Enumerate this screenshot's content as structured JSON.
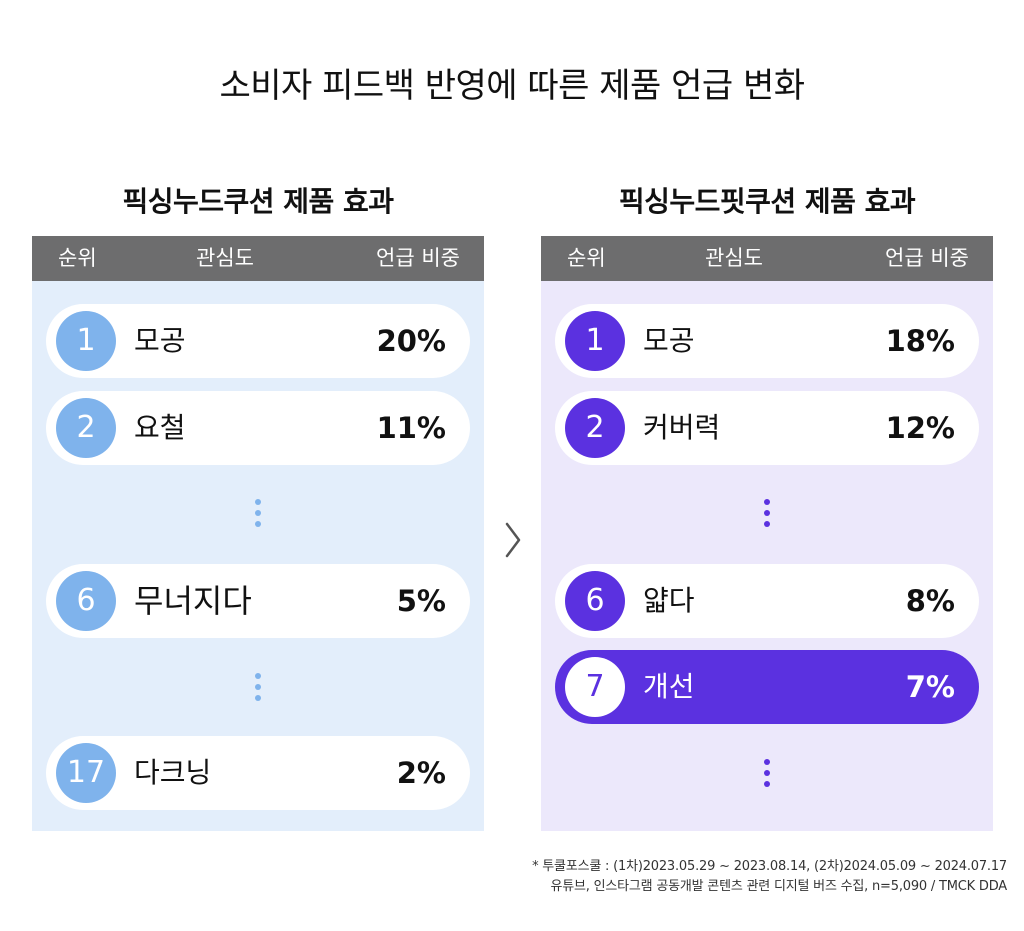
{
  "title": "소비자 피드백 반영에 따른 제품 언급 변화",
  "headers": {
    "rank": "순위",
    "interest": "관심도",
    "share": "언급 비중"
  },
  "colors": {
    "left_badge": "#7fb3ec",
    "left_bg": "#e3eefb",
    "right_badge": "#5b31e0",
    "right_bg": "#ece8fb",
    "header": "#6d6d6e"
  },
  "chart_data": [
    {
      "type": "table",
      "title": "픽싱누드쿠션 제품 효과",
      "columns": [
        "순위",
        "관심도",
        "언급 비중"
      ],
      "rows": [
        {
          "rank": "1",
          "keyword": "모공",
          "share": "20%"
        },
        {
          "rank": "2",
          "keyword": "요철",
          "share": "11%"
        },
        {
          "rank": "6",
          "keyword": "무너지다",
          "share": "5%"
        },
        {
          "rank": "17",
          "keyword": "다크닝",
          "share": "2%"
        }
      ]
    },
    {
      "type": "table",
      "title": "픽싱누드핏쿠션 제품 효과",
      "columns": [
        "순위",
        "관심도",
        "언급 비중"
      ],
      "rows": [
        {
          "rank": "1",
          "keyword": "모공",
          "share": "18%"
        },
        {
          "rank": "2",
          "keyword": "커버력",
          "share": "12%"
        },
        {
          "rank": "6",
          "keyword": "얇다",
          "share": "8%"
        },
        {
          "rank": "7",
          "keyword": "개선",
          "share": "7%",
          "highlight": true
        }
      ]
    }
  ],
  "footnote": {
    "line1": "* 투쿨포스쿨 : (1차)2023.05.29 ~ 2023.08.14, (2차)2024.05.09 ~ 2024.07.17",
    "line2": "유튜브, 인스타그램 공동개발 콘텐츠 관련 디지털 버즈 수집, n=5,090 / TMCK DDA"
  }
}
